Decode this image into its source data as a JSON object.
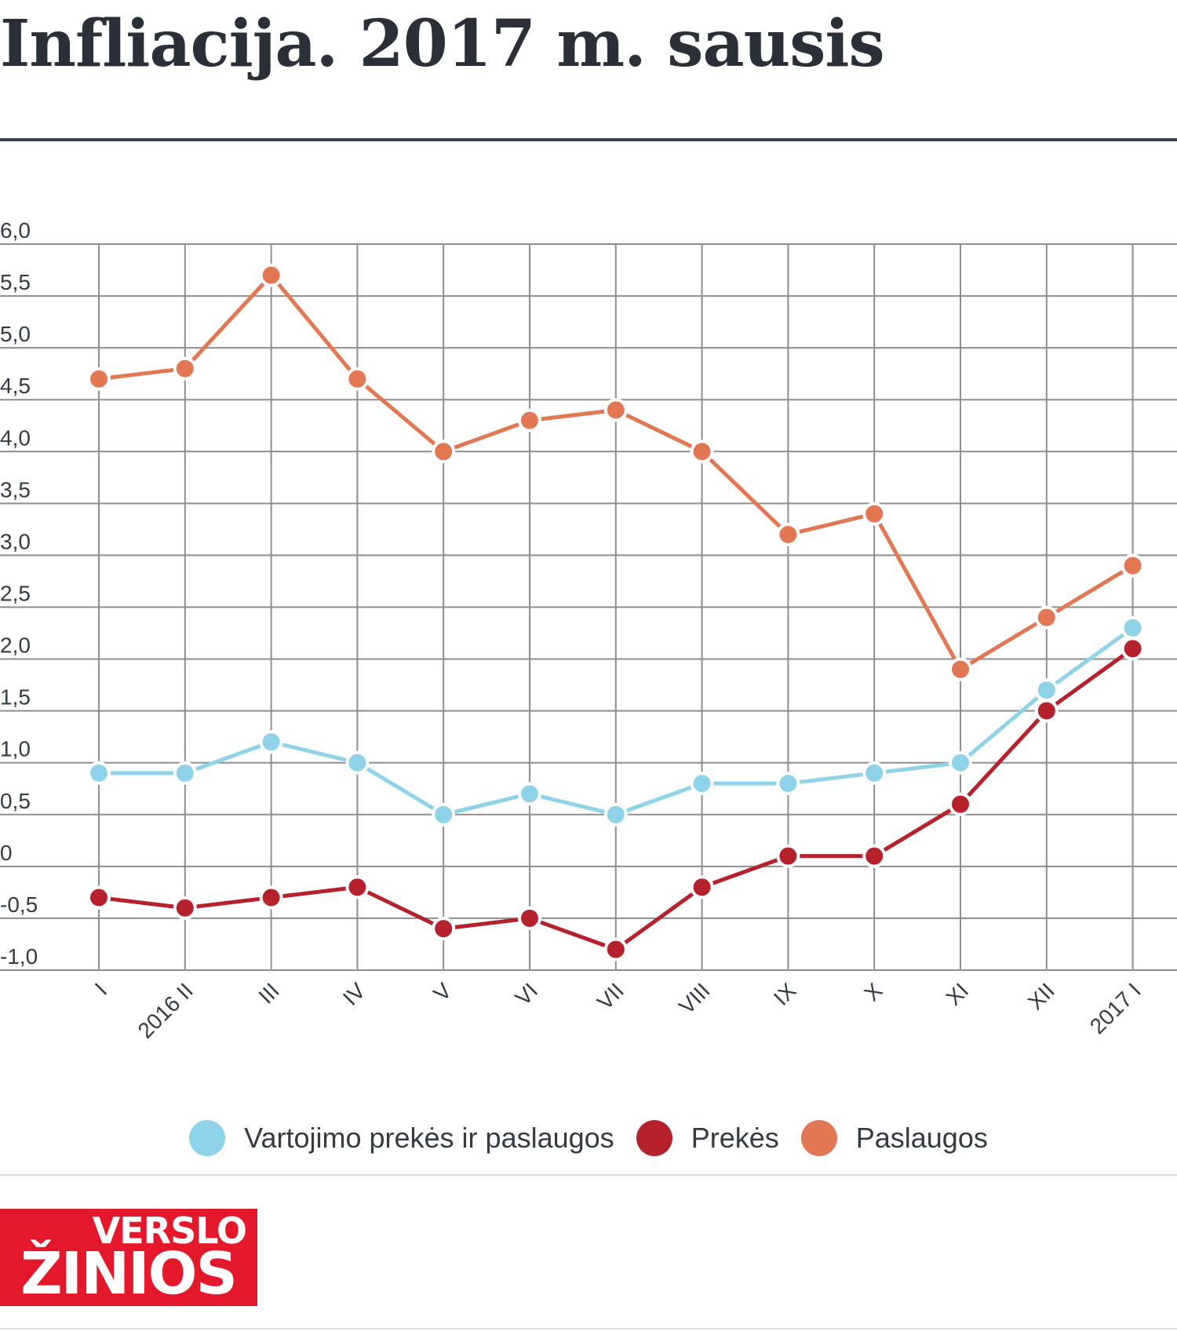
{
  "title": "Infliacija. 2017 m. sausis",
  "chart_data": {
    "type": "line",
    "categories": [
      "I",
      "2016 II",
      "III",
      "IV",
      "V",
      "VI",
      "VII",
      "VIII",
      "IX",
      "X",
      "XI",
      "XII",
      "2017 I"
    ],
    "y_ticks": [
      "6,0",
      "5,5",
      "5,0",
      "4,5",
      "4,0",
      "3,5",
      "3,0",
      "2,5",
      "2,0",
      "1,5",
      "1,0",
      "0,5",
      "0",
      "-0,5",
      "-1,0"
    ],
    "ylim": [
      -1.0,
      6.0
    ],
    "grid": true,
    "legend_position": "bottom",
    "series": [
      {
        "name": "Vartojimo prekės ir paslaugos",
        "color": "#8fd3ea",
        "values": [
          0.9,
          0.9,
          1.2,
          1.0,
          0.5,
          0.7,
          0.5,
          0.8,
          0.8,
          0.9,
          1.0,
          1.7,
          2.3
        ]
      },
      {
        "name": "Prekės",
        "color": "#b5222c",
        "values": [
          -0.3,
          -0.4,
          -0.3,
          -0.2,
          -0.6,
          -0.5,
          -0.8,
          -0.2,
          0.1,
          0.1,
          0.6,
          1.5,
          2.1
        ]
      },
      {
        "name": "Paslaugos",
        "color": "#e27753",
        "values": [
          4.7,
          4.8,
          5.7,
          4.7,
          4.0,
          4.3,
          4.4,
          4.0,
          3.2,
          3.4,
          1.9,
          2.4,
          2.9
        ]
      }
    ]
  },
  "logo": {
    "top": "VERSLO",
    "bottom": "ŽINIOS"
  }
}
